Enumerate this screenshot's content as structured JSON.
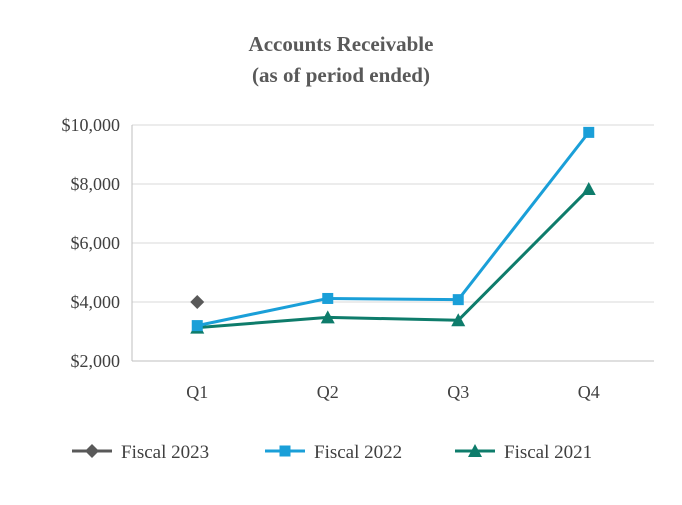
{
  "chart_data": {
    "type": "line",
    "title": "Accounts Receivable",
    "subtitle": "(as of period ended)",
    "categories": [
      "Q1",
      "Q2",
      "Q3",
      "Q4"
    ],
    "ylim": [
      2000,
      10000
    ],
    "yticks": [
      2000,
      4000,
      6000,
      8000,
      10000
    ],
    "ytick_labels": [
      "$2,000",
      "$4,000",
      "$6,000",
      "$8,000",
      "$10,000"
    ],
    "grid": true,
    "legend_position": "bottom",
    "series": [
      {
        "name": "Fiscal 2023",
        "values": [
          4000,
          null,
          null,
          null
        ],
        "color": "#595959",
        "marker": "diamond"
      },
      {
        "name": "Fiscal 2022",
        "values": [
          3200,
          4120,
          4080,
          9750
        ],
        "color": "#1a9fd8",
        "marker": "square"
      },
      {
        "name": "Fiscal 2021",
        "values": [
          3130,
          3480,
          3380,
          7830
        ],
        "color": "#0e7c6b",
        "marker": "triangle"
      }
    ]
  }
}
